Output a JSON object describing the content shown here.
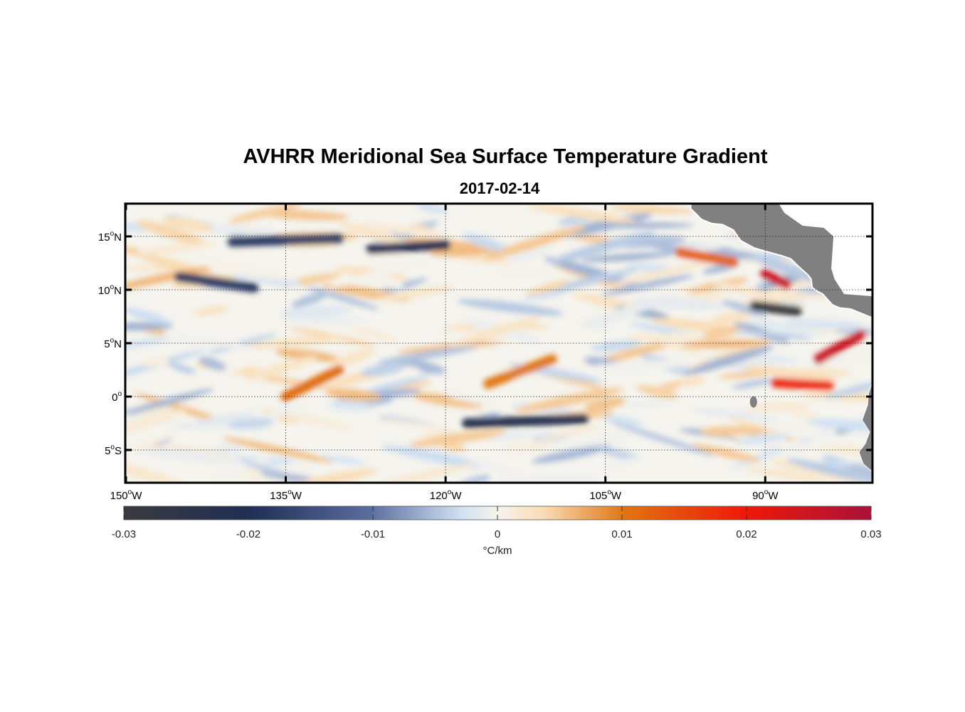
{
  "title": "AVHRR Meridional Sea Surface Temperature Gradient",
  "subtitle": "2017-02-14",
  "map": {
    "lon_range": [
      -150,
      -80
    ],
    "lat_range": [
      -8,
      18
    ],
    "lon_ticks": [
      {
        "value": -150,
        "deg": "150",
        "hemi": "W"
      },
      {
        "value": -135,
        "deg": "135",
        "hemi": "W"
      },
      {
        "value": -120,
        "deg": "120",
        "hemi": "W"
      },
      {
        "value": -105,
        "deg": "105",
        "hemi": "W"
      },
      {
        "value": -90,
        "deg": "90",
        "hemi": "W"
      }
    ],
    "lat_ticks": [
      {
        "value": 15,
        "deg": "15",
        "hemi": "N"
      },
      {
        "value": 10,
        "deg": "10",
        "hemi": "N"
      },
      {
        "value": 5,
        "deg": "5",
        "hemi": "N"
      },
      {
        "value": 0,
        "deg": "0",
        "hemi": ""
      },
      {
        "value": -5,
        "deg": "5",
        "hemi": "S"
      }
    ],
    "grid": true,
    "land_color": "#808080"
  },
  "colorbar": {
    "ticks": [
      "-0.03",
      "-0.02",
      "-0.01",
      "0",
      "0.01",
      "0.02",
      "0.03"
    ],
    "tick_values": [
      -0.03,
      -0.02,
      -0.01,
      0,
      0.01,
      0.02,
      0.03
    ],
    "unit_label": "°C/km",
    "colors": [
      "#3a3a3e",
      "#1f2f55",
      "#5a6e9e",
      "#cfe0f2",
      "#f6f3ec",
      "#f9deb8",
      "#e07512",
      "#f01808",
      "#a8123a"
    ]
  },
  "chart_data": {
    "type": "heatmap",
    "title": "AVHRR Meridional Sea Surface Temperature Gradient",
    "subtitle": "2017-02-14",
    "xlabel": "",
    "ylabel": "",
    "xlim": [
      -150,
      -80
    ],
    "ylim": [
      -8,
      18
    ],
    "colorbar_range": [
      -0.03,
      0.03
    ],
    "colorbar_label": "°C/km",
    "features": [
      {
        "lon": [
          -140,
          -130
        ],
        "lat": [
          14.5,
          14.8
        ],
        "value": -0.018
      },
      {
        "lon": [
          -127,
          -120
        ],
        "lat": [
          13.8,
          14.2
        ],
        "value": -0.02
      },
      {
        "lon": [
          -145,
          -138
        ],
        "lat": [
          11.2,
          10.2
        ],
        "value": -0.018
      },
      {
        "lon": [
          -118,
          -107
        ],
        "lat": [
          -2.5,
          -2.1
        ],
        "value": -0.022
      },
      {
        "lon": [
          -98,
          -93
        ],
        "lat": [
          13.5,
          12.6
        ],
        "value": 0.012
      },
      {
        "lon": [
          -90,
          -88
        ],
        "lat": [
          11.5,
          10.5
        ],
        "value": 0.025
      },
      {
        "lon": [
          -91,
          -87
        ],
        "lat": [
          8.5,
          8.0
        ],
        "value": -0.03
      },
      {
        "lon": [
          -85,
          -81
        ],
        "lat": [
          3.5,
          5.8
        ],
        "value": 0.025
      },
      {
        "lon": [
          -89,
          -84
        ],
        "lat": [
          1.3,
          1.0
        ],
        "value": 0.018
      },
      {
        "lon": [
          -135,
          -130
        ],
        "lat": [
          0,
          2.5
        ],
        "value": 0.011
      },
      {
        "lon": [
          -116,
          -110
        ],
        "lat": [
          1.2,
          3.5
        ],
        "value": 0.01
      }
    ]
  }
}
